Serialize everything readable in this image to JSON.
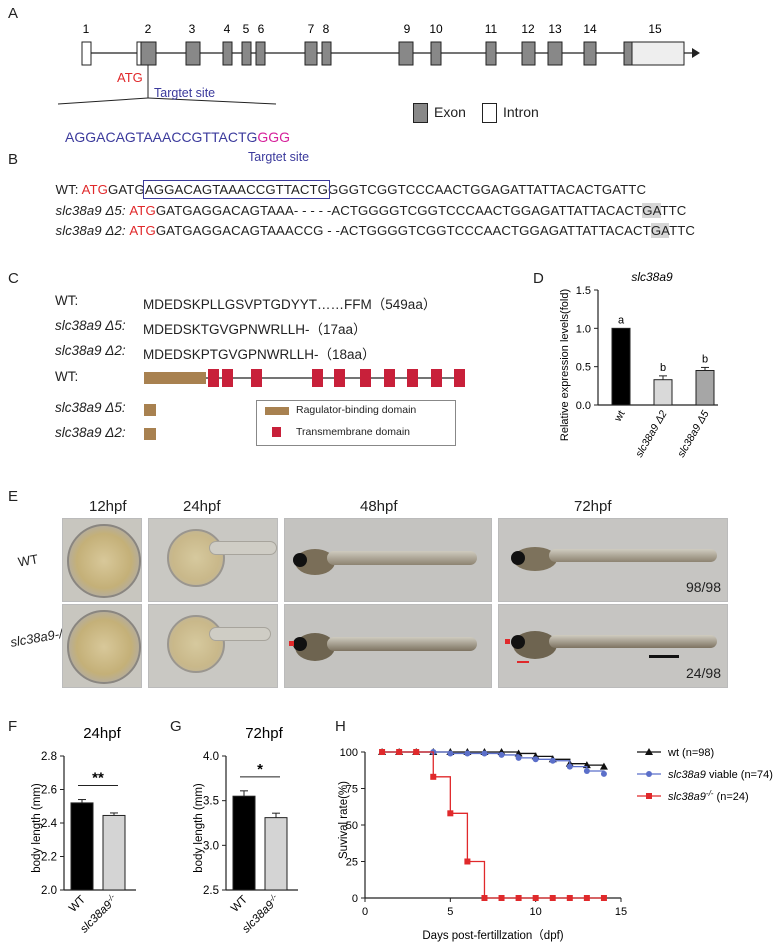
{
  "panels": {
    "A": {
      "label": "A",
      "exon_numbers": [
        "1",
        "2",
        "3",
        "4",
        "5",
        "6",
        "7",
        "8",
        "9",
        "10",
        "11",
        "12",
        "13",
        "14",
        "15"
      ],
      "atg": "ATG",
      "target_label": "Targtet site",
      "target_seq": "AGGACAGTAAACCGTTACTG",
      "pam": "GGG",
      "legend_exon": "Exon",
      "legend_intron": "Intron"
    },
    "B": {
      "label": "B",
      "target_label": "Targtet site",
      "rows": [
        {
          "name": "WT:",
          "atg": "ATG",
          "pre": "GATG",
          "boxed": "AGGACAGTAAACCGTTACTG",
          "post": "GGGTCGGTCCCAACTGGAGATTATTACACTGATTC"
        },
        {
          "name": "slc38a9 Δ5:",
          "atg": "ATG",
          "seq": "GATGAGGACAGTAAA- - - - -ACTGGGGTCGGTCCCAACTGGAGATTATTACACT",
          "hl": "GA",
          "tail": "TTC"
        },
        {
          "name": "slc38a9 Δ2:",
          "atg": "ATG",
          "seq": "GATGAGGACAGTAAACCG - -ACTGGGGTCGGTCCCAACTGGAGATTATTACACT",
          "hl": "GA",
          "tail": "TTC"
        }
      ]
    },
    "C": {
      "label": "C",
      "rows": [
        {
          "name": "WT:",
          "seq": "MDEDSKPLLGSVPTGDYYT……FFM（549aa）"
        },
        {
          "name": "slc38a9 Δ5:",
          "seq": "MDEDSKTGVGPNWRLLH-（17aa）"
        },
        {
          "name": "slc38a9 Δ2:",
          "seq": "MDEDSKPTGVGPNWRLLH-（18aa）"
        }
      ],
      "domain_rows": [
        "WT:",
        "slc38a9 Δ5:",
        "slc38a9 Δ2:"
      ],
      "legend_ragulator": "Ragulator-binding domain",
      "legend_tm": "Transmembrane domain",
      "colors": {
        "ragulator": "#a88150",
        "tm": "#c8203a"
      }
    },
    "D": {
      "label": "D",
      "title": "slc38a9",
      "ylabel": "Relative expression levels(fold)",
      "chart_data": {
        "type": "bar",
        "categories": [
          "wt",
          "slc38a9 Δ2",
          "slc38a9 Δ5"
        ],
        "values": [
          1.0,
          0.33,
          0.45
        ],
        "errors": [
          0,
          0.05,
          0.04
        ],
        "letters": [
          "a",
          "b",
          "b"
        ],
        "colors": [
          "#000000",
          "#d9d9d9",
          "#a6a6a6"
        ],
        "ylim": [
          0,
          1.5
        ],
        "yticks": [
          "0.0",
          "0.5",
          "1.0",
          "1.5"
        ]
      }
    },
    "E": {
      "label": "E",
      "times": [
        "12hpf",
        "24hpf",
        "48hpf",
        "72hpf"
      ],
      "rows": [
        "WT",
        "slc38a9-/-"
      ],
      "count_wt": "98/98",
      "count_mut": "24/98"
    },
    "F": {
      "label": "F",
      "title": "24hpf",
      "ylabel": "body length (mm)",
      "sig": "**",
      "chart_data": {
        "type": "bar",
        "categories": [
          "WT",
          "slc38a9-/-"
        ],
        "values": [
          2.52,
          2.445
        ],
        "errors": [
          0.02,
          0.015
        ],
        "ylim": [
          2.0,
          2.8
        ],
        "yticks": [
          "2.0",
          "2.2",
          "2.4",
          "2.6",
          "2.8"
        ]
      }
    },
    "G": {
      "label": "G",
      "title": "72hpf",
      "ylabel": "body length (mm)",
      "sig": "*",
      "chart_data": {
        "type": "bar",
        "categories": [
          "WT",
          "slc38a9-/-"
        ],
        "values": [
          3.55,
          3.31
        ],
        "errors": [
          0.06,
          0.05
        ],
        "ylim": [
          2.5,
          4.0
        ],
        "yticks": [
          "2.5",
          "3.0",
          "3.5",
          "4.0"
        ]
      }
    },
    "H": {
      "label": "H",
      "ylabel": "Suvival rate(%)",
      "xlabel": "Days post-fertillzation（dpf)",
      "chart_data": {
        "type": "line",
        "xlim": [
          0,
          15
        ],
        "ylim": [
          0,
          100
        ],
        "xticks": [
          "0",
          "5",
          "10",
          "15"
        ],
        "yticks": [
          "0",
          "25",
          "50",
          "75",
          "100"
        ],
        "series": [
          {
            "name": "wt (n=98)",
            "color": "#111111",
            "marker": "triangle",
            "x": [
              1,
              2,
              3,
              4,
              5,
              6,
              7,
              8,
              9,
              10,
              11,
              12,
              13,
              14
            ],
            "y": [
              100,
              100,
              100,
              100,
              100,
              100,
              100,
              100,
              99,
              97,
              95,
              92,
              91,
              90
            ]
          },
          {
            "name": "slc38a9 viable (n=74)",
            "color": "#5b6fc9",
            "marker": "circle",
            "x": [
              1,
              2,
              3,
              4,
              5,
              6,
              7,
              8,
              9,
              10,
              11,
              12,
              13,
              14
            ],
            "y": [
              100,
              100,
              100,
              100,
              99,
              99,
              99,
              98,
              96,
              95,
              94,
              90,
              87,
              85
            ]
          },
          {
            "name": "slc38a9-/- (n=24)",
            "color": "#e0292b",
            "marker": "square",
            "x": [
              1,
              2,
              3,
              4,
              5,
              6,
              7,
              8,
              9,
              10,
              11,
              12,
              13,
              14
            ],
            "y": [
              100,
              100,
              100,
              83,
              58,
              25,
              0,
              0,
              0,
              0,
              0,
              0,
              0,
              0
            ]
          }
        ]
      }
    }
  }
}
